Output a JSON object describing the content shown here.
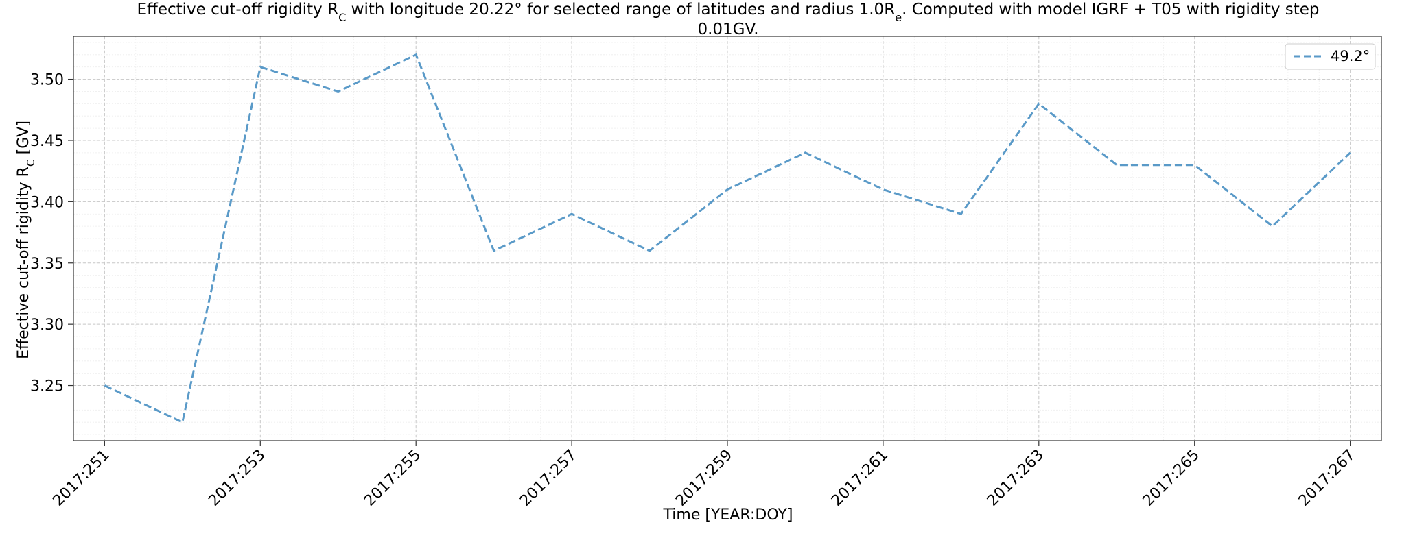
{
  "chart_data": {
    "type": "line",
    "title_line1": "Effective cut-off rigidity R C with longitude 20.22° for selected range of latitudes and radius 1.0R e. Computed with model IGRF + T05 with rigidity step",
    "title_line2": "0.01GV.",
    "xlabel": "Time [YEAR:DOY]",
    "ylabel": "Effective cut-off rigidity R C [GV]",
    "x": [
      251,
      252,
      253,
      254,
      255,
      256,
      257,
      258,
      259,
      260,
      261,
      262,
      263,
      264,
      265,
      266,
      267
    ],
    "x_tick_values": [
      251,
      253,
      255,
      257,
      259,
      261,
      263,
      265,
      267
    ],
    "x_tick_labels": [
      "2017:251",
      "2017:253",
      "2017:255",
      "2017:257",
      "2017:259",
      "2017:261",
      "2017:263",
      "2017:265",
      "2017:267"
    ],
    "y_ticks": [
      3.25,
      3.3,
      3.35,
      3.4,
      3.45,
      3.5
    ],
    "y_tick_labels": [
      "3.25",
      "3.30",
      "3.35",
      "3.40",
      "3.45",
      "3.50"
    ],
    "xlim": [
      250.6,
      267.4
    ],
    "ylim": [
      3.205,
      3.535
    ],
    "grid": true,
    "legend_position": "top-right",
    "series": [
      {
        "name": "49.2°",
        "color": "#5a9ac8",
        "style": "dashed",
        "values": [
          3.25,
          3.22,
          3.51,
          3.49,
          3.52,
          3.36,
          3.39,
          3.36,
          3.41,
          3.44,
          3.41,
          3.39,
          3.48,
          3.43,
          3.43,
          3.38,
          3.44
        ]
      }
    ]
  }
}
